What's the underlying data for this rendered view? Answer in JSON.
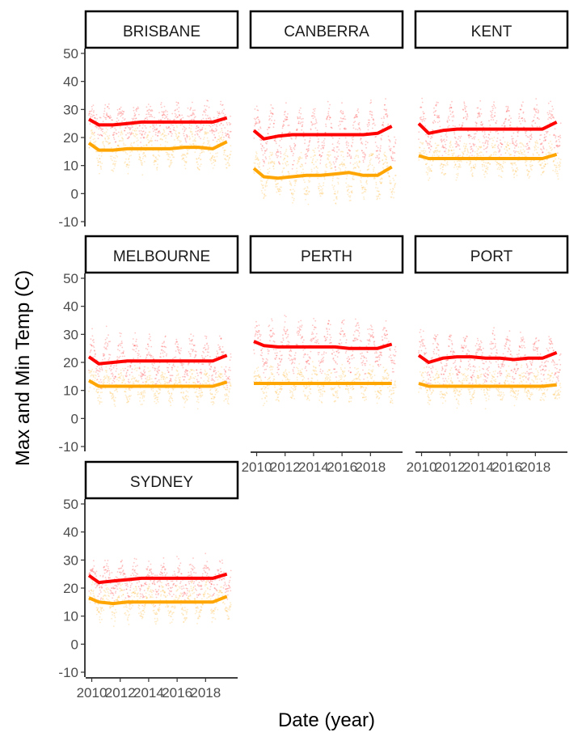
{
  "chart_data": {
    "type": "scatter",
    "facet_by": "location",
    "xlabel": "Date (year)",
    "ylabel": "Max and Min Temp (C)",
    "xlim": [
      2009.8,
      2019.8
    ],
    "ylim": [
      -10,
      50
    ],
    "x_ticks": [
      2010,
      2012,
      2014,
      2016,
      2018
    ],
    "y_ticks": [
      -10,
      0,
      10,
      20,
      30,
      40,
      50
    ],
    "series_styles": [
      {
        "key": "max",
        "color": "#ff0000"
      },
      {
        "key": "min",
        "color": "#ffa500"
      }
    ],
    "smooth_x": [
      2009.8,
      2010.5,
      2011.5,
      2012.5,
      2013.5,
      2014.5,
      2015.5,
      2016.5,
      2017.5,
      2018.5,
      2019.5
    ],
    "panels": [
      {
        "label": "BRISBANE",
        "max_mean": 25.5,
        "max_amp": 3.5,
        "min_mean": 16,
        "min_amp": 5,
        "max_smooth": [
          26.5,
          24.5,
          24.5,
          25,
          25.5,
          25.5,
          25.5,
          25.5,
          25.5,
          25.5,
          27
        ],
        "min_smooth": [
          18,
          15.5,
          15.5,
          16,
          16,
          16,
          16,
          16.5,
          16.5,
          16,
          18.5
        ]
      },
      {
        "label": "CANBERRA",
        "max_mean": 21,
        "max_amp": 8,
        "min_mean": 6.5,
        "min_amp": 6.5,
        "max_smooth": [
          22.5,
          19.5,
          20.5,
          21,
          21,
          21,
          21,
          21,
          21,
          21.5,
          24
        ],
        "min_smooth": [
          9,
          6,
          5.5,
          6,
          6.5,
          6.5,
          7,
          7.5,
          6.5,
          6.5,
          9.5
        ]
      },
      {
        "label": "KENT",
        "max_mean": 23,
        "max_amp": 6.5,
        "min_mean": 12.5,
        "min_amp": 4,
        "max_smooth": [
          25,
          21.5,
          22.5,
          23,
          23,
          23,
          23,
          23,
          23,
          23,
          25.5
        ],
        "min_smooth": [
          13.5,
          12.5,
          12.5,
          12.5,
          12.5,
          12.5,
          12.5,
          12.5,
          12.5,
          12.5,
          14
        ]
      },
      {
        "label": "MELBOURNE",
        "max_mean": 20.5,
        "max_amp": 6,
        "min_mean": 11.5,
        "min_amp": 4,
        "max_smooth": [
          22,
          19.5,
          20,
          20.5,
          20.5,
          20.5,
          20.5,
          20.5,
          20.5,
          20.5,
          22.5
        ],
        "min_smooth": [
          13.5,
          11.5,
          11.5,
          11.5,
          11.5,
          11.5,
          11.5,
          11.5,
          11.5,
          11.5,
          13
        ]
      },
      {
        "label": "PERTH",
        "max_mean": 25.5,
        "max_amp": 6.5,
        "min_mean": 12.5,
        "min_amp": 4,
        "max_smooth": [
          27.5,
          26,
          25.5,
          25.5,
          25.5,
          25.5,
          25.5,
          25,
          25,
          25,
          26.5
        ],
        "min_smooth": [
          12.5,
          12.5,
          12.5,
          12.5,
          12.5,
          12.5,
          12.5,
          12.5,
          12.5,
          12.5,
          12.5
        ]
      },
      {
        "label": "PORT",
        "max_mean": 21.5,
        "max_amp": 6,
        "min_mean": 11.5,
        "min_amp": 3.5,
        "max_smooth": [
          22.5,
          20,
          21.5,
          22,
          22,
          21.5,
          21.5,
          21,
          21.5,
          21.5,
          23.5
        ],
        "min_smooth": [
          12.5,
          11.5,
          11.5,
          11.5,
          11.5,
          11.5,
          11.5,
          11.5,
          11.5,
          11.5,
          12
        ]
      },
      {
        "label": "SYDNEY",
        "max_mean": 23,
        "max_amp": 4,
        "min_mean": 15,
        "min_amp": 4.5,
        "max_smooth": [
          24.5,
          22,
          22.5,
          23,
          23.5,
          23.5,
          23.5,
          23.5,
          23.5,
          23.5,
          25
        ],
        "min_smooth": [
          16.5,
          15,
          14.5,
          15,
          15,
          15,
          15,
          15,
          15,
          15,
          17
        ]
      }
    ]
  }
}
